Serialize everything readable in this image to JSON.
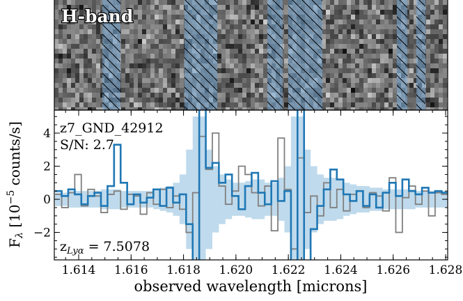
{
  "chart_data": {
    "type": "spectrum",
    "panel_label": "H-band",
    "annotations": [
      "z7_GND_42912",
      "S/N: 2.7"
    ],
    "redshift_label": {
      "symbol": "z",
      "subscript": "Lyα",
      "text": " = 7.5078"
    },
    "xlabel": "observed wavelength [microns]",
    "ylabel": {
      "main": "F",
      "sub": "λ",
      "pre": " [10",
      "sup": "−5",
      "post": " counts/s]"
    },
    "xlim": [
      1.61307,
      1.62808
    ],
    "ylim": [
      -3.66,
      5.39
    ],
    "xticks": [
      1.614,
      1.616,
      1.618,
      {
        "value": 1.62,
        "label": "1.620"
      },
      1.622,
      1.624,
      1.626,
      1.628
    ],
    "yticks": [
      {
        "value": -2,
        "label": "−2"
      },
      0,
      2,
      4
    ],
    "x": [
      1.6131,
      1.61335,
      1.6136,
      1.61385,
      1.6141,
      1.61435,
      1.6146,
      1.61485,
      1.6151,
      1.61535,
      1.6156,
      1.61585,
      1.6161,
      1.61635,
      1.6166,
      1.61685,
      1.6171,
      1.61735,
      1.6176,
      1.61785,
      1.6181,
      1.61835,
      1.6186,
      1.61885,
      1.6191,
      1.61935,
      1.6196,
      1.61985,
      1.6201,
      1.62035,
      1.6206,
      1.62085,
      1.6211,
      1.62135,
      1.6216,
      1.62185,
      1.6221,
      1.62235,
      1.6226,
      1.62285,
      1.6231,
      1.62335,
      1.6236,
      1.62385,
      1.6241,
      1.62435,
      1.6246,
      1.62485,
      1.6251,
      1.62535,
      1.6256,
      1.62585,
      1.6261,
      1.62635,
      1.6266,
      1.62685,
      1.6271,
      1.62735,
      1.6276,
      1.62785
    ],
    "error": {
      "color": "#a9cde6",
      "values": [
        0.4,
        0.4,
        0.5,
        0.5,
        0.5,
        0.5,
        0.5,
        0.6,
        0.6,
        0.6,
        0.5,
        0.5,
        0.5,
        0.5,
        0.5,
        0.6,
        0.7,
        0.8,
        1.0,
        1.5,
        3,
        5,
        5,
        3,
        2,
        1.5,
        1.2,
        1.0,
        1.0,
        1.1,
        1.2,
        1.2,
        1.0,
        1.0,
        1.3,
        2,
        5,
        5,
        3,
        2,
        1.5,
        1.3,
        1.3,
        1.2,
        1.0,
        0.9,
        0.8,
        0.8,
        0.7,
        0.7,
        0.6,
        0.6,
        0.6,
        0.6,
        0.6,
        0.5,
        0.5,
        0.5,
        0.5,
        0.5
      ]
    },
    "series": [
      {
        "color": "#808080",
        "values": [
          0.3,
          -0.5,
          0.4,
          1.5,
          -0.4,
          0.6,
          0.2,
          -0.8,
          0.3,
          0.5,
          -0.6,
          0.3,
          0.2,
          -0.9,
          0.4,
          -0.3,
          0.6,
          -0.5,
          0.2,
          -0.6,
          -2.0,
          0.4,
          3.8,
          1.8,
          4.0,
          0.8,
          -0.3,
          0.5,
          2.0,
          1.5,
          0.4,
          -0.4,
          0.8,
          -1.9,
          3.7,
          0.6,
          -3,
          2.5,
          -0.8,
          0.2,
          -1.0,
          1.0,
          -0.5,
          0.6,
          -0.7,
          0.3,
          0.5,
          -0.5,
          0.4,
          0.2,
          -0.7,
          1.3,
          -2.0,
          0.1,
          0.8,
          -0.3,
          0.5,
          -1.0,
          0.4,
          0.3
        ]
      },
      {
        "color": "#1f77b4",
        "values": [
          0.5,
          0.2,
          0.6,
          0.3,
          -0.3,
          0.2,
          0.4,
          -0.4,
          0.8,
          3.3,
          1.0,
          -0.3,
          0.3,
          -0.2,
          0.1,
          0.6,
          -0.4,
          0.7,
          -0.2,
          0.3,
          -1.5,
          -4.5,
          6,
          1.9,
          2.2,
          1.0,
          1.5,
          0.2,
          -0.6,
          0.8,
          1.6,
          0.4,
          -0.3,
          1.1,
          -0.1,
          0.5,
          -4.5,
          6,
          -4.5,
          -1.8,
          -0.4,
          0.6,
          1.8,
          1.2,
          0.3,
          -0.1,
          0.5,
          -0.4,
          0.3,
          -0.5,
          0.4,
          1.0,
          0.2,
          1.2,
          0.5,
          0.3,
          0.7,
          0.4,
          0.5,
          0.4
        ]
      }
    ]
  }
}
